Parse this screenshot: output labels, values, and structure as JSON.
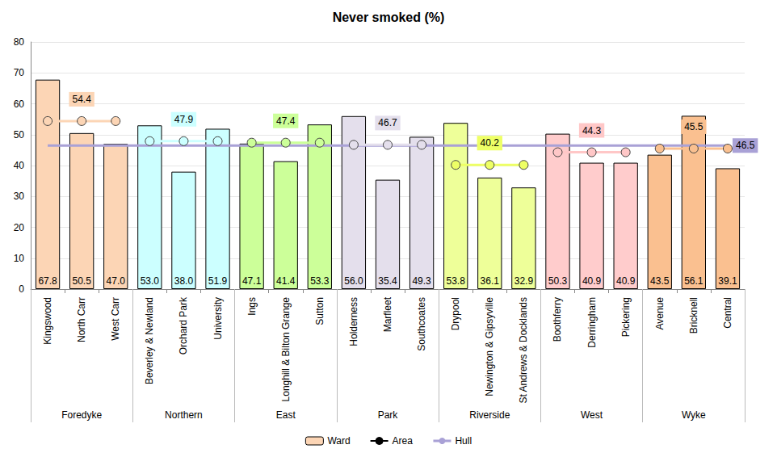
{
  "chart_data": {
    "type": "bar",
    "title": "Never smoked (%)",
    "categories": [
      "Kingswood",
      "North Carr",
      "West Carr",
      "Beverley & Newland",
      "Orchard Park",
      "University",
      "Ings",
      "Longhill & Bilton Grange",
      "Sutton",
      "Holderness",
      "Marfleet",
      "Southcoates",
      "Drypool",
      "Newington & Gipsyville",
      "St Andrews & Docklands",
      "Boothferry",
      "Derringham",
      "Pickering",
      "Avenue",
      "Bricknell",
      "Central"
    ],
    "groups": [
      "Foredyke",
      "Foredyke",
      "Foredyke",
      "Northern",
      "Northern",
      "Northern",
      "East",
      "East",
      "East",
      "Park",
      "Park",
      "Park",
      "Riverside",
      "Riverside",
      "Riverside",
      "West",
      "West",
      "West",
      "Wyke",
      "Wyke",
      "Wyke"
    ],
    "series": [
      {
        "name": "Ward",
        "type": "bar",
        "values": [
          67.8,
          50.5,
          47.0,
          53.0,
          38.0,
          51.9,
          47.1,
          41.4,
          53.3,
          56.0,
          35.4,
          49.3,
          53.8,
          36.1,
          32.9,
          50.3,
          40.9,
          40.9,
          43.5,
          56.1,
          39.1
        ],
        "value_labels": [
          "67.8",
          "50.5",
          "47.0",
          "53.0",
          "38.0",
          "51.9",
          "47.1",
          "41.4",
          "53.3",
          "56.0",
          "35.4",
          "49.3",
          "53.8",
          "36.1",
          "32.9",
          "50.3",
          "40.9",
          "40.9",
          "43.5",
          "56.1",
          "39.1"
        ],
        "colors": [
          "#fcd5b5",
          "#fcd5b5",
          "#fcd5b5",
          "#ccffff",
          "#ccffff",
          "#ccffff",
          "#ccff99",
          "#ccff99",
          "#ccff99",
          "#e4dfec",
          "#e4dfec",
          "#e4dfec",
          "#eeff99",
          "#eeff99",
          "#eeff99",
          "#ffcccc",
          "#ffcccc",
          "#ffcccc",
          "#fac090",
          "#fac090",
          "#fac090"
        ]
      },
      {
        "name": "Area",
        "type": "line",
        "color": "#000000",
        "marker": "circle",
        "values": [
          54.4,
          54.4,
          54.4,
          47.9,
          47.9,
          47.9,
          47.4,
          47.4,
          47.4,
          46.7,
          46.7,
          46.7,
          40.2,
          40.2,
          40.2,
          44.3,
          44.3,
          44.3,
          45.5,
          45.5,
          45.5
        ],
        "colors": [
          "#fcd5b5",
          "#fcd5b5",
          "#fcd5b5",
          "#ccffff",
          "#ccffff",
          "#ccffff",
          "#ccff99",
          "#ccff99",
          "#ccff99",
          "#e4dfec",
          "#e4dfec",
          "#e4dfec",
          "#eeff66",
          "#eeff66",
          "#eeff66",
          "#ffc7c7",
          "#ffc7c7",
          "#ffc7c7",
          "#fac090",
          "#fac090",
          "#fac090"
        ]
      },
      {
        "name": "Hull",
        "type": "line",
        "color": "#a9a1d6",
        "values": [
          46.5,
          46.5,
          46.5,
          46.5,
          46.5,
          46.5,
          46.5,
          46.5,
          46.5,
          46.5,
          46.5,
          46.5,
          46.5,
          46.5,
          46.5,
          46.5,
          46.5,
          46.5,
          46.5,
          46.5,
          46.5
        ]
      }
    ],
    "ylim": [
      0,
      80
    ],
    "yticks": [
      0,
      10,
      20,
      30,
      40,
      50,
      60,
      70,
      80
    ],
    "grid": true,
    "data_labels": true,
    "legend": "bottom"
  }
}
